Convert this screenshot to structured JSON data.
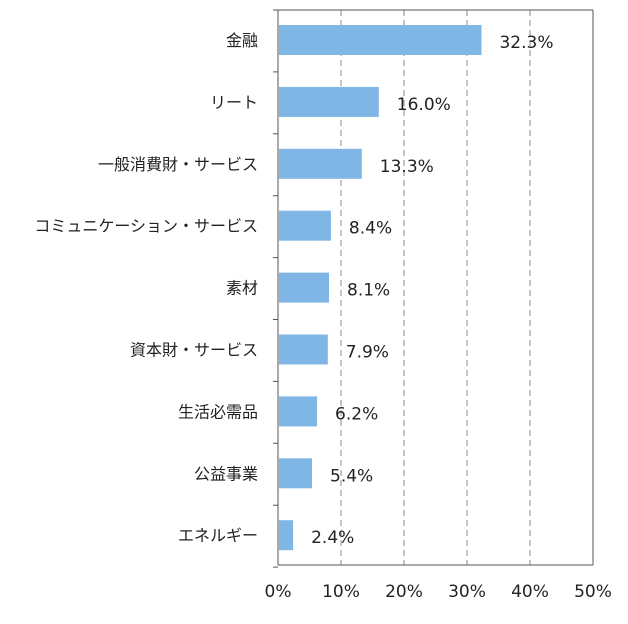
{
  "chart_data": {
    "type": "bar",
    "orientation": "horizontal",
    "categories": [
      "金融",
      "リート",
      "一般消費財・サービス",
      "コミュニケーション・サービス",
      "素材",
      "資本財・サービス",
      "生活必需品",
      "公益事業",
      "エネルギー"
    ],
    "values": [
      32.3,
      16.0,
      13.3,
      8.4,
      8.1,
      7.9,
      6.2,
      5.4,
      2.4
    ],
    "value_labels": [
      "32.3%",
      "16.0%",
      "13.3%",
      "8.4%",
      "8.1%",
      "7.9%",
      "6.2%",
      "5.4%",
      "2.4%"
    ],
    "xlim": [
      0,
      50
    ],
    "xticks": [
      0,
      10,
      20,
      30,
      40,
      50
    ],
    "xtick_labels": [
      "0%",
      "10%",
      "20%",
      "30%",
      "40%",
      "50%"
    ],
    "grid": "vertical dashed",
    "bar_color": "#7fb6e6",
    "title": "",
    "xlabel": "",
    "ylabel": ""
  }
}
